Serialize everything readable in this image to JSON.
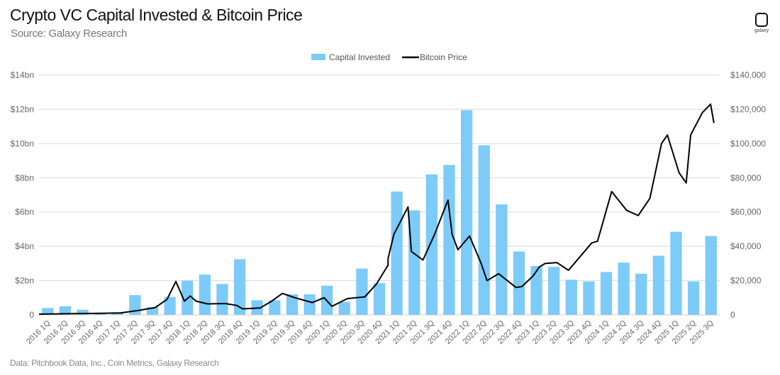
{
  "header": {
    "title": "Crypto VC Capital Invested & Bitcoin Price",
    "subtitle": "Source: Galaxy Research",
    "logo_text": "galaxy"
  },
  "footer": {
    "note": "Data: Pitchbook Data, Inc., Coin Metrics, Galaxy Research"
  },
  "colors": {
    "bar": "#7ccbf8",
    "line": "#000000",
    "grid": "#d9d9d9"
  },
  "chart_data": {
    "type": "bar+line",
    "title": "Crypto VC Capital Invested & Bitcoin Price",
    "legend": {
      "placement": "top-center",
      "entries": [
        "Capital Invested",
        "Bitcoin Price"
      ]
    },
    "grid": true,
    "categories": [
      "2016 1Q",
      "2016 2Q",
      "2016 3Q",
      "2016 4Q",
      "2017 1Q",
      "2017 2Q",
      "2017 3Q",
      "2017 4Q",
      "2018 1Q",
      "2018 2Q",
      "2018 3Q",
      "2018 4Q",
      "2019 1Q",
      "2019 2Q",
      "2019 3Q",
      "2019 4Q",
      "2020 1Q",
      "2020 2Q",
      "2020 3Q",
      "2020 4Q",
      "2021 1Q",
      "2021 2Q",
      "2021 3Q",
      "2021 4Q",
      "2022 1Q",
      "2022 2Q",
      "2022 3Q",
      "2022 4Q",
      "2023 1Q",
      "2023 2Q",
      "2023 3Q",
      "2023 4Q",
      "2024 1Q",
      "2024 2Q",
      "2024 3Q",
      "2024 4Q",
      "2025 1Q",
      "2025 2Q",
      "2025 3Q"
    ],
    "y_left": {
      "range": [
        0,
        14
      ],
      "ticks": [
        "0",
        "$2bn",
        "$4bn",
        "$6bn",
        "$8bn",
        "$10bn",
        "$12bn",
        "$14bn"
      ],
      "unit": "bn USD"
    },
    "y_right": {
      "range": [
        0,
        140000
      ],
      "ticks": [
        "0",
        "$20,000",
        "$40,000",
        "$60,000",
        "$80,000",
        "$100,000",
        "$120,000",
        "$140,000"
      ]
    },
    "series": [
      {
        "name": "Capital Invested",
        "type": "bar",
        "axis": "left",
        "values": [
          0.4,
          0.5,
          0.3,
          0.05,
          0.15,
          1.15,
          0.45,
          1.05,
          2.0,
          2.35,
          1.8,
          3.25,
          0.85,
          0.85,
          1.2,
          1.2,
          1.7,
          0.75,
          2.7,
          1.85,
          7.2,
          6.1,
          8.2,
          8.75,
          11.95,
          9.9,
          6.45,
          3.7,
          2.85,
          2.8,
          2.05,
          1.95,
          2.5,
          3.05,
          2.4,
          3.45,
          4.85,
          1.95,
          4.6
        ]
      },
      {
        "name": "Bitcoin Price",
        "type": "line",
        "axis": "right",
        "points": [
          [
            "2016-01",
            430
          ],
          [
            "2016-06",
            650
          ],
          [
            "2016-12",
            960
          ],
          [
            "2017-03",
            1100
          ],
          [
            "2017-06",
            2500
          ],
          [
            "2017-09",
            4300
          ],
          [
            "2017-11",
            9000
          ],
          [
            "2017-12-17",
            19500
          ],
          [
            "2018-02",
            8000
          ],
          [
            "2018-03",
            11000
          ],
          [
            "2018-04",
            8000
          ],
          [
            "2018-06",
            6400
          ],
          [
            "2018-09",
            6600
          ],
          [
            "2018-11",
            5500
          ],
          [
            "2018-12",
            3500
          ],
          [
            "2019-03",
            4000
          ],
          [
            "2019-05",
            8000
          ],
          [
            "2019-06-26",
            12500
          ],
          [
            "2019-09",
            10000
          ],
          [
            "2019-12",
            7200
          ],
          [
            "2020-02",
            10000
          ],
          [
            "2020-03-12",
            5000
          ],
          [
            "2020-06",
            9500
          ],
          [
            "2020-09",
            10500
          ],
          [
            "2020-11",
            18000
          ],
          [
            "2020-12-31",
            29000
          ],
          [
            "2021-01",
            33000
          ],
          [
            "2021-02",
            47000
          ],
          [
            "2021-04-14",
            63000
          ],
          [
            "2021-05",
            37000
          ],
          [
            "2021-07",
            32000
          ],
          [
            "2021-09",
            47000
          ],
          [
            "2021-11-10",
            67000
          ],
          [
            "2021-12",
            47000
          ],
          [
            "2022-01",
            38000
          ],
          [
            "2022-03",
            46000
          ],
          [
            "2022-05",
            30000
          ],
          [
            "2022-06",
            20000
          ],
          [
            "2022-08",
            24000
          ],
          [
            "2022-11",
            16000
          ],
          [
            "2022-12",
            16500
          ],
          [
            "2023-02",
            23000
          ],
          [
            "2023-03",
            28000
          ],
          [
            "2023-04",
            30000
          ],
          [
            "2023-06",
            30500
          ],
          [
            "2023-08",
            26000
          ],
          [
            "2023-10",
            34000
          ],
          [
            "2023-12",
            42000
          ],
          [
            "2024-01",
            43000
          ],
          [
            "2024-03-14",
            72000
          ],
          [
            "2024-06",
            61000
          ],
          [
            "2024-08",
            58000
          ],
          [
            "2024-10",
            68000
          ],
          [
            "2024-12",
            100000
          ],
          [
            "2025-01",
            105000
          ],
          [
            "2025-03",
            83000
          ],
          [
            "2025-04-08",
            77000
          ],
          [
            "2025-05",
            105000
          ],
          [
            "2025-07",
            118000
          ],
          [
            "2025-08-14",
            123000
          ],
          [
            "2025-09",
            112000
          ]
        ]
      }
    ]
  }
}
